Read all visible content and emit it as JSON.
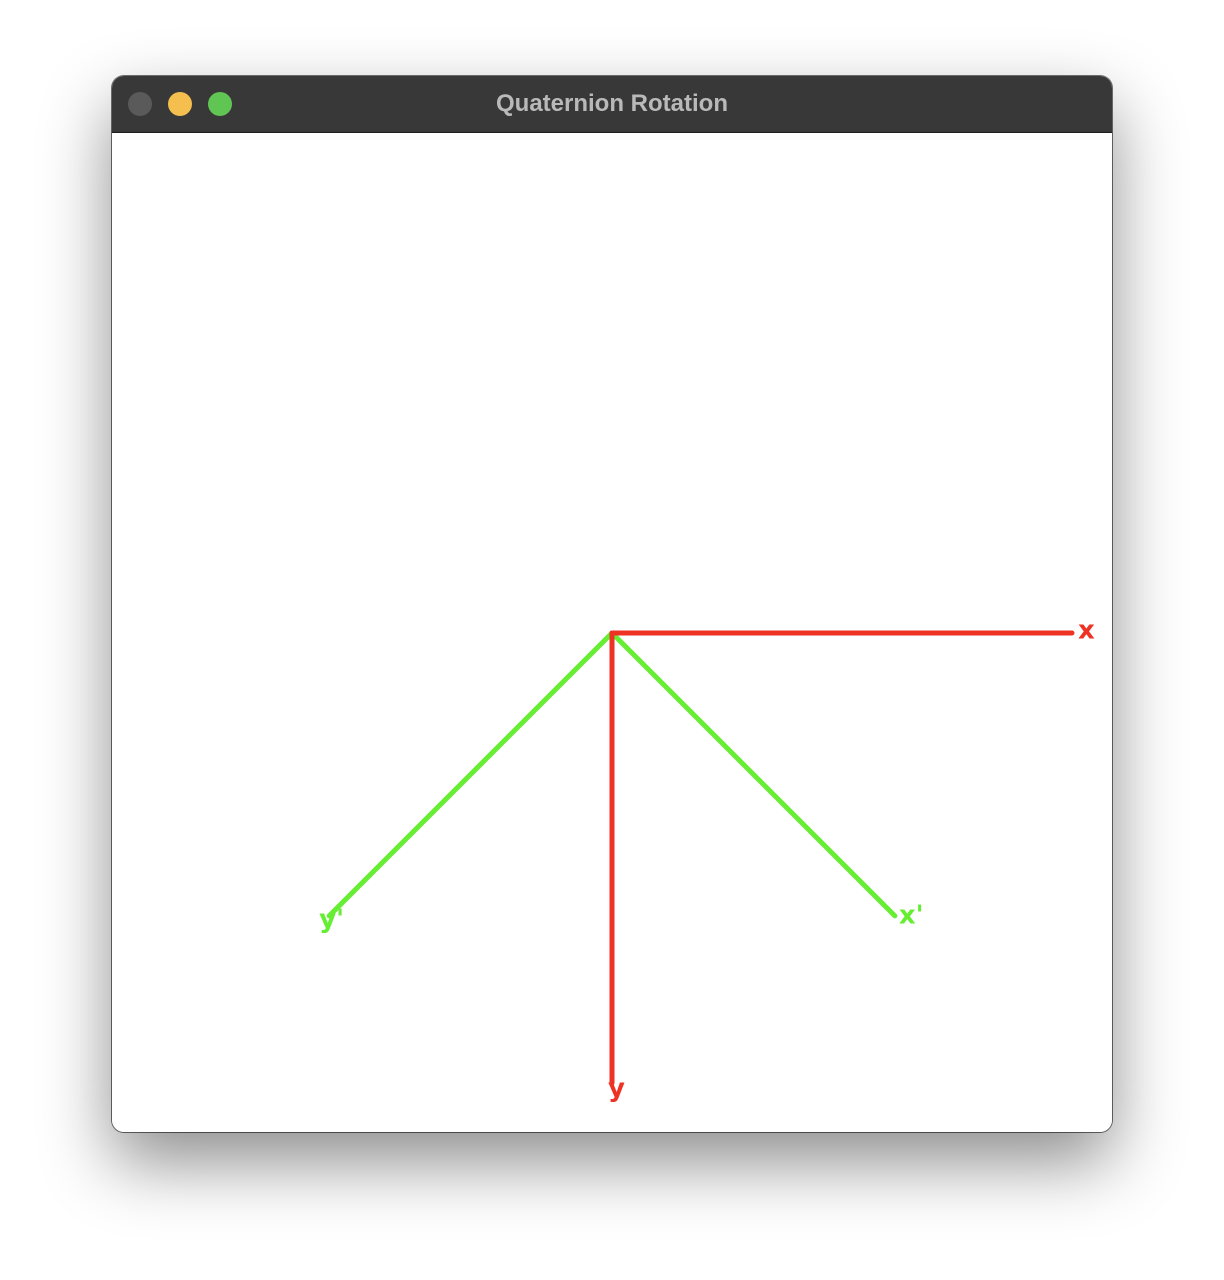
{
  "window": {
    "title": "Quaternion Rotation",
    "traffic_lights": {
      "close_color": "#5a5a5a",
      "minimize_color": "#f4bf4f",
      "zoom_color": "#61c554"
    }
  },
  "scene": {
    "original_color": "#ee3224",
    "rotated_color": "#66ee33",
    "original_axes": [
      {
        "name": "x",
        "label": "x",
        "dir": [
          1,
          0
        ]
      },
      {
        "name": "y",
        "label": "y",
        "dir": [
          0,
          1
        ]
      }
    ],
    "rotated_axes": [
      {
        "name": "x-prime",
        "label": "x'",
        "dir": [
          0.7071,
          0.7071
        ]
      },
      {
        "name": "y-prime",
        "label": "y'",
        "dir": [
          -0.7071,
          0.7071
        ]
      }
    ]
  }
}
